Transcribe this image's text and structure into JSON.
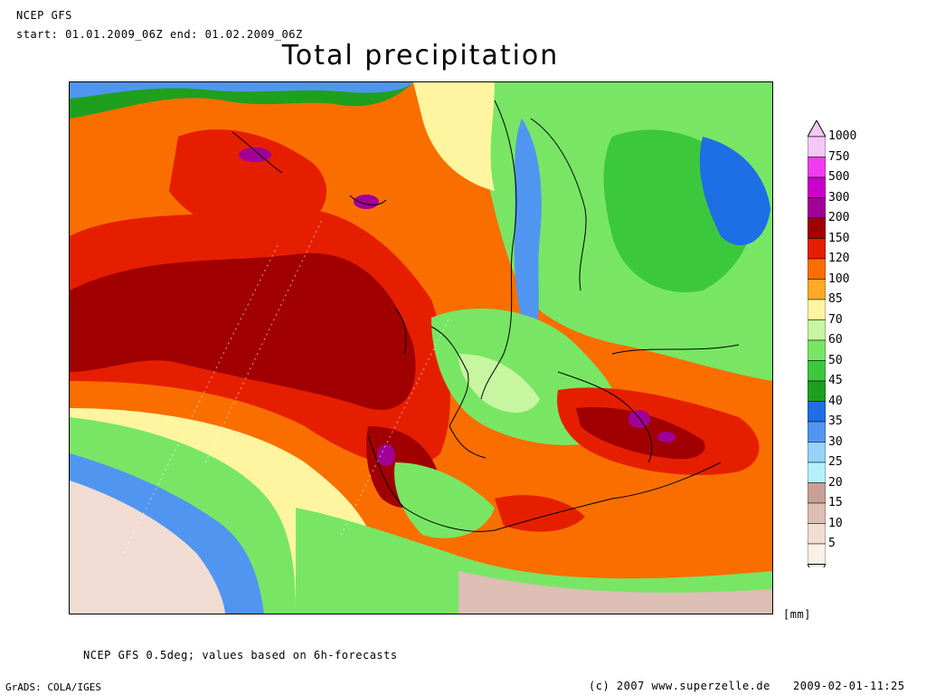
{
  "header": {
    "model": "NCEP GFS",
    "period": "start: 01.01.2009_06Z end: 01.02.2009_06Z",
    "title": "Total precipitation"
  },
  "legend": {
    "unit": "[mm]",
    "levels": [
      {
        "label": "1000",
        "color": "#f4c8f4"
      },
      {
        "label": "750",
        "color": "#f03cf0"
      },
      {
        "label": "500",
        "color": "#c800c8"
      },
      {
        "label": "300",
        "color": "#a00096"
      },
      {
        "label": "200",
        "color": "#a00000"
      },
      {
        "label": "150",
        "color": "#e61e00"
      },
      {
        "label": "120",
        "color": "#fa6e00"
      },
      {
        "label": "100",
        "color": "#ffaa28"
      },
      {
        "label": "85",
        "color": "#fff5a0"
      },
      {
        "label": "70",
        "color": "#c8f5a0"
      },
      {
        "label": "60",
        "color": "#78e664"
      },
      {
        "label": "50",
        "color": "#3cc83c"
      },
      {
        "label": "45",
        "color": "#1ea01e"
      },
      {
        "label": "40",
        "color": "#1e6ee6"
      },
      {
        "label": "35",
        "color": "#5096f0"
      },
      {
        "label": "30",
        "color": "#96d2fa"
      },
      {
        "label": "25",
        "color": "#b4f0fa"
      },
      {
        "label": "20",
        "color": "#c8a096"
      },
      {
        "label": "15",
        "color": "#dcbeb4"
      },
      {
        "label": "10",
        "color": "#f0dcd2"
      },
      {
        "label": "5",
        "color": "#faf0e6"
      }
    ]
  },
  "footer": {
    "note": "NCEP GFS 0.5deg; values based on 6h-forecasts",
    "software": "GrADS: COLA/IGES",
    "copyright": "(c) 2007 www.superzelle.de",
    "timestamp": "2009-02-01-11:25"
  }
}
